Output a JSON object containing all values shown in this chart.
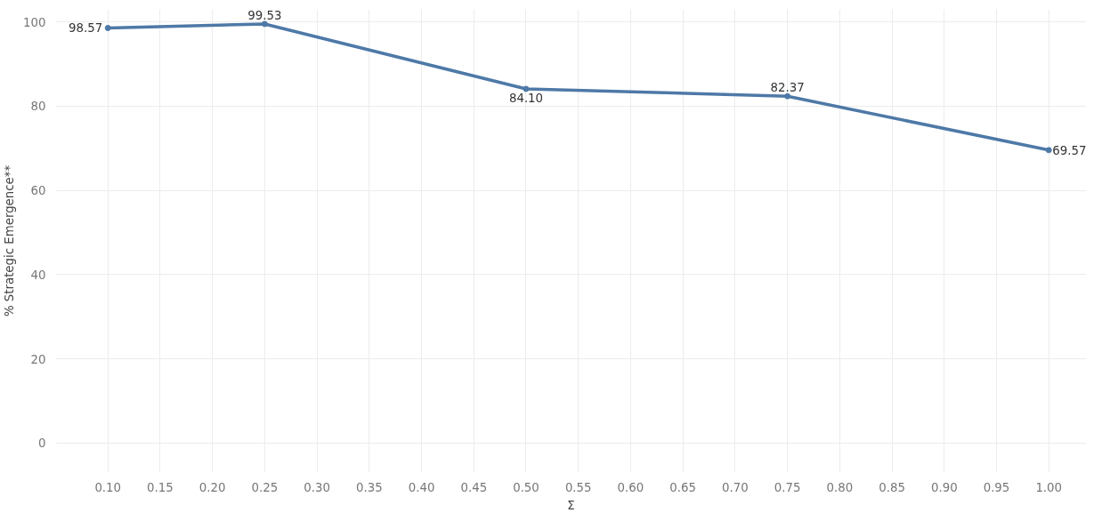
{
  "chart_data": {
    "type": "line",
    "xlabel": "Σ",
    "ylabel": "% Strategic Emergence**",
    "x": [
      0.1,
      0.25,
      0.5,
      0.75,
      1.0
    ],
    "series": [
      {
        "color": "#4e79a7",
        "values": [
          98.57,
          99.53,
          84.1,
          82.37,
          69.57
        ],
        "value_labels": [
          "98.57",
          "99.53",
          "84.10",
          "82.37",
          "69.57"
        ]
      }
    ],
    "xlim": [
      0.05,
      1.036
    ],
    "xticks": [
      {
        "value": 0.1,
        "label": "0.10"
      },
      {
        "value": 0.15,
        "label": "0.15"
      },
      {
        "value": 0.2,
        "label": "0.20"
      },
      {
        "value": 0.25,
        "label": "0.25"
      },
      {
        "value": 0.3,
        "label": "0.30"
      },
      {
        "value": 0.35,
        "label": "0.35"
      },
      {
        "value": 0.4,
        "label": "0.40"
      },
      {
        "value": 0.45,
        "label": "0.45"
      },
      {
        "value": 0.5,
        "label": "0.50"
      },
      {
        "value": 0.55,
        "label": "0.55"
      },
      {
        "value": 0.6,
        "label": "0.60"
      },
      {
        "value": 0.65,
        "label": "0.65"
      },
      {
        "value": 0.7,
        "label": "0.70"
      },
      {
        "value": 0.75,
        "label": "0.75"
      },
      {
        "value": 0.8,
        "label": "0.80"
      },
      {
        "value": 0.85,
        "label": "0.85"
      },
      {
        "value": 0.9,
        "label": "0.90"
      },
      {
        "value": 0.95,
        "label": "0.95"
      },
      {
        "value": 1.0,
        "label": "1.00"
      }
    ],
    "ylim": [
      -7,
      103
    ],
    "yticks": [
      0,
      20,
      40,
      60,
      80,
      100
    ],
    "grid": true,
    "marker": "circle",
    "line_style": "solid"
  }
}
